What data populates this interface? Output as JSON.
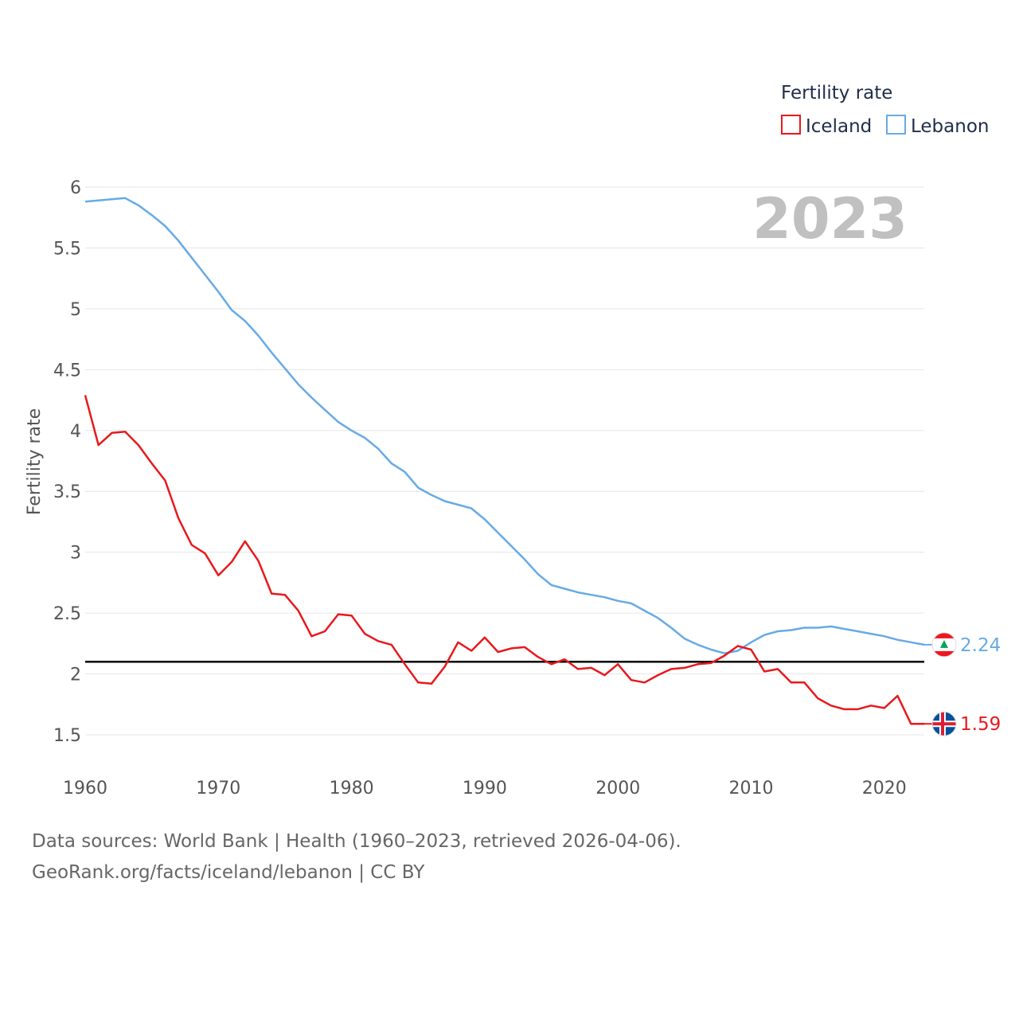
{
  "chart_data": {
    "type": "line",
    "title": "",
    "ylabel": "Fertility rate",
    "xlabel": "",
    "year_label": "2023",
    "ylim": [
      1.25,
      6.1
    ],
    "xlim": [
      1960,
      2023
    ],
    "yticks": [
      1.5,
      2,
      2.5,
      3,
      3.5,
      4,
      4.5,
      5,
      5.5,
      6
    ],
    "ytick_labels": [
      "1.5",
      "2",
      "2.5",
      "3",
      "3.5",
      "4",
      "4.5",
      "5",
      "5.5",
      "6"
    ],
    "xticks": [
      1960,
      1970,
      1980,
      1990,
      2000,
      2010,
      2020
    ],
    "xtick_labels": [
      "1960",
      "1970",
      "1980",
      "1990",
      "2000",
      "2010",
      "2020"
    ],
    "reference_line": {
      "y": 2.1,
      "color": "#000000"
    },
    "legend": {
      "title": "Fertility rate",
      "position": "top-right",
      "items": [
        "Iceland",
        "Lebanon"
      ]
    },
    "years": [
      1960,
      1961,
      1962,
      1963,
      1964,
      1965,
      1966,
      1967,
      1968,
      1969,
      1970,
      1971,
      1972,
      1973,
      1974,
      1975,
      1976,
      1977,
      1978,
      1979,
      1980,
      1981,
      1982,
      1983,
      1984,
      1985,
      1986,
      1987,
      1988,
      1989,
      1990,
      1991,
      1992,
      1993,
      1994,
      1995,
      1996,
      1997,
      1998,
      1999,
      2000,
      2001,
      2002,
      2003,
      2004,
      2005,
      2006,
      2007,
      2008,
      2009,
      2010,
      2011,
      2012,
      2013,
      2014,
      2015,
      2016,
      2017,
      2018,
      2019,
      2020,
      2021,
      2022,
      2023
    ],
    "series": [
      {
        "name": "Iceland",
        "color": "#e8191c",
        "end_label": "1.59",
        "values": [
          4.29,
          3.88,
          3.98,
          3.99,
          3.88,
          3.73,
          3.59,
          3.28,
          3.06,
          2.99,
          2.81,
          2.92,
          3.09,
          2.93,
          2.66,
          2.65,
          2.52,
          2.31,
          2.35,
          2.49,
          2.48,
          2.33,
          2.27,
          2.24,
          2.08,
          1.93,
          1.92,
          2.06,
          2.26,
          2.19,
          2.3,
          2.18,
          2.21,
          2.22,
          2.14,
          2.08,
          2.12,
          2.04,
          2.05,
          1.99,
          2.08,
          1.95,
          1.93,
          1.99,
          2.04,
          2.05,
          2.08,
          2.09,
          2.15,
          2.23,
          2.2,
          2.02,
          2.04,
          1.93,
          1.93,
          1.8,
          1.74,
          1.71,
          1.71,
          1.74,
          1.72,
          1.82,
          1.59,
          1.59
        ]
      },
      {
        "name": "Lebanon",
        "color": "#67aae6",
        "end_label": "2.24",
        "values": [
          5.88,
          5.89,
          5.9,
          5.91,
          5.85,
          5.77,
          5.68,
          5.56,
          5.42,
          5.28,
          5.14,
          4.99,
          4.9,
          4.78,
          4.64,
          4.51,
          4.38,
          4.27,
          4.17,
          4.07,
          4.0,
          3.94,
          3.85,
          3.73,
          3.66,
          3.53,
          3.47,
          3.42,
          3.39,
          3.36,
          3.27,
          3.16,
          3.05,
          2.94,
          2.82,
          2.73,
          2.7,
          2.67,
          2.65,
          2.63,
          2.6,
          2.58,
          2.52,
          2.46,
          2.38,
          2.29,
          2.24,
          2.2,
          2.17,
          2.19,
          2.26,
          2.32,
          2.35,
          2.36,
          2.38,
          2.38,
          2.39,
          2.37,
          2.35,
          2.33,
          2.31,
          2.28,
          2.26,
          2.24
        ]
      }
    ]
  },
  "footer": {
    "source": "Data sources: World Bank | Health (1960–2023, retrieved 2026-04-06).",
    "site": "GeoRank.org/facts/iceland/lebanon | CC BY"
  }
}
